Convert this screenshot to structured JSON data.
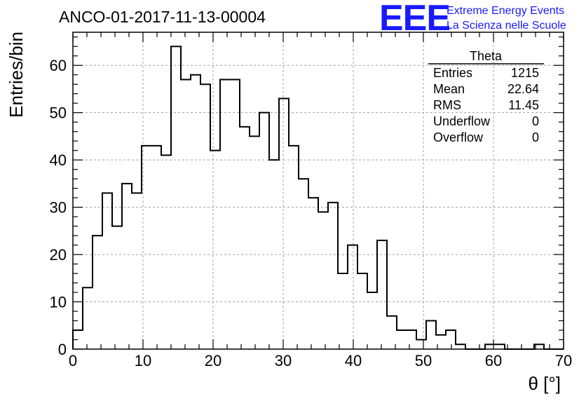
{
  "chart_data": {
    "type": "bar",
    "title": "ANCO-01-2017-11-13-00004",
    "xlabel": "θ [°]",
    "ylabel": "Entries/bin",
    "xlim": [
      0,
      70
    ],
    "ylim": [
      0,
      67
    ],
    "x_ticks": [
      0,
      10,
      20,
      30,
      40,
      50,
      60,
      70
    ],
    "y_ticks": [
      0,
      10,
      20,
      30,
      40,
      50,
      60
    ],
    "grid": true,
    "bin_width": 1.4,
    "bins_start": [
      0,
      1.4,
      2.8,
      4.2,
      5.6,
      7.0,
      8.4,
      9.8,
      11.2,
      12.6,
      14.0,
      15.4,
      16.8,
      18.2,
      19.6,
      21.0,
      22.4,
      23.8,
      25.2,
      26.6,
      28.0,
      29.4,
      30.8,
      32.2,
      33.6,
      35.0,
      36.4,
      37.8,
      39.2,
      40.6,
      42.0,
      43.4,
      44.8,
      46.2,
      47.6,
      49.0,
      50.4,
      51.8,
      53.2,
      54.6,
      56.0,
      57.4,
      58.8,
      60.2,
      61.6,
      63.0,
      64.4,
      65.8,
      67.2,
      68.6
    ],
    "values": [
      4,
      13,
      24,
      33,
      26,
      35,
      33,
      43,
      43,
      41,
      64,
      57,
      58,
      56,
      42,
      57,
      57,
      47,
      45,
      50,
      40,
      53,
      43,
      36,
      32,
      29,
      31,
      16,
      22,
      16,
      12,
      23,
      7,
      4,
      4,
      2,
      6,
      3,
      4,
      1,
      0,
      0,
      1,
      1,
      0,
      0,
      0,
      1,
      0,
      0
    ],
    "stats": {
      "name": "Theta",
      "rows": [
        {
          "label": "Entries",
          "value": "1215"
        },
        {
          "label": "Mean",
          "value": "22.64"
        },
        {
          "label": "RMS",
          "value": "11.45"
        },
        {
          "label": "Underflow",
          "value": "0"
        },
        {
          "label": "Overflow",
          "value": "0"
        }
      ]
    },
    "colors": {
      "line": "#000000",
      "grid": "#a0a0a0",
      "logo": "#1a1aff"
    }
  },
  "logo": {
    "mark": "EEE",
    "line1": "Extreme Energy Events",
    "line2": "La Scienza nelle Scuole"
  }
}
